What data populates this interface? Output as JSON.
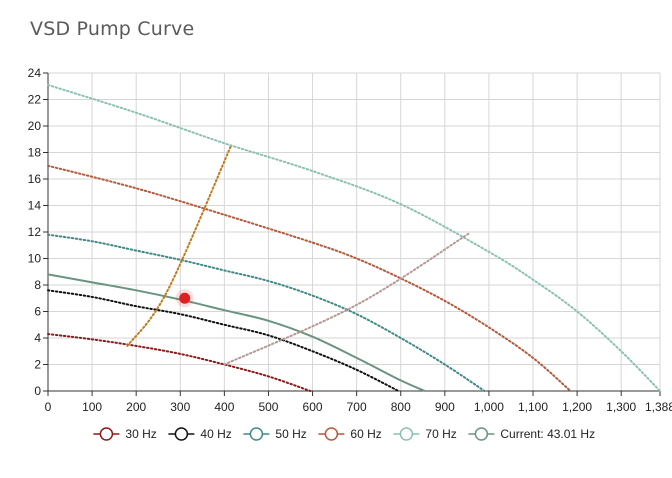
{
  "page": {
    "title": "VSD Pump Curve"
  },
  "chart_data": {
    "type": "line",
    "title": "VSD Pump Curve",
    "xlabel": "",
    "ylabel": "",
    "xlim": [
      0,
      1388
    ],
    "ylim": [
      0,
      24
    ],
    "grid": true,
    "legend_position": "bottom",
    "x_ticks": [
      0,
      100,
      200,
      300,
      400,
      500,
      600,
      700,
      800,
      900,
      1000,
      1100,
      1200,
      1300,
      1388
    ],
    "x_tick_labels": [
      "0",
      "100",
      "200",
      "300",
      "400",
      "500",
      "600",
      "700",
      "800",
      "900",
      "1,000",
      "1,100",
      "1,200",
      "1,300",
      "1,388"
    ],
    "y_ticks": [
      0,
      2,
      4,
      6,
      8,
      10,
      12,
      14,
      16,
      18,
      20,
      22,
      24
    ],
    "y_tick_labels": [
      "0",
      "2",
      "4",
      "6",
      "8",
      "10",
      "12",
      "14",
      "16",
      "18",
      "20",
      "22",
      "24"
    ],
    "series": [
      {
        "name": "30 Hz",
        "color": "#8b1a1a",
        "style": "dotted",
        "x": [
          0,
          100,
          200,
          300,
          400,
          500,
          595
        ],
        "y": [
          4.3,
          3.9,
          3.4,
          2.8,
          2.0,
          1.1,
          0
        ]
      },
      {
        "name": "40 Hz",
        "color": "#111111",
        "style": "dotted",
        "x": [
          0,
          100,
          200,
          300,
          400,
          500,
          600,
          700,
          795
        ],
        "y": [
          7.6,
          7.1,
          6.4,
          5.8,
          5.0,
          4.2,
          3.0,
          1.6,
          0
        ]
      },
      {
        "name": "50 Hz",
        "color": "#3f8a86",
        "style": "dotted",
        "x": [
          0,
          100,
          200,
          300,
          400,
          500,
          600,
          700,
          800,
          900,
          990
        ],
        "y": [
          11.8,
          11.3,
          10.6,
          9.9,
          9.1,
          8.3,
          7.2,
          5.8,
          4.0,
          2.0,
          0
        ]
      },
      {
        "name": "60 Hz",
        "color": "#b45a3c",
        "style": "dotted",
        "x": [
          0,
          200,
          400,
          600,
          700,
          800,
          900,
          1000,
          1100,
          1185
        ],
        "y": [
          17.0,
          15.3,
          13.3,
          11.2,
          10.0,
          8.5,
          6.8,
          4.8,
          2.5,
          0
        ]
      },
      {
        "name": "70 Hz",
        "color": "#8cc0b2",
        "style": "dotted",
        "x": [
          0,
          200,
          400,
          600,
          800,
          1000,
          1100,
          1200,
          1300,
          1388
        ],
        "y": [
          23.1,
          21.0,
          18.7,
          16.6,
          14.1,
          10.5,
          8.4,
          6.0,
          3.0,
          0
        ]
      },
      {
        "name": "Current: 43.01 Hz",
        "color": "#6b9480",
        "style": "solid",
        "x": [
          0,
          100,
          200,
          300,
          400,
          500,
          600,
          700,
          800,
          855
        ],
        "y": [
          8.8,
          8.2,
          7.6,
          6.9,
          6.1,
          5.3,
          4.1,
          2.5,
          0.8,
          0
        ]
      },
      {
        "name": "",
        "color": "#c07a1e",
        "style": "dotted",
        "x": [
          180,
          270,
          415
        ],
        "y": [
          3.4,
          7.5,
          18.5
        ]
      },
      {
        "name": "",
        "color": "#b49a96",
        "style": "dotted",
        "x": [
          400,
          700,
          955
        ],
        "y": [
          2.0,
          6.5,
          11.9
        ]
      }
    ],
    "points": [
      {
        "x": 310,
        "y": 7.0,
        "color": "#e02020"
      }
    ]
  }
}
